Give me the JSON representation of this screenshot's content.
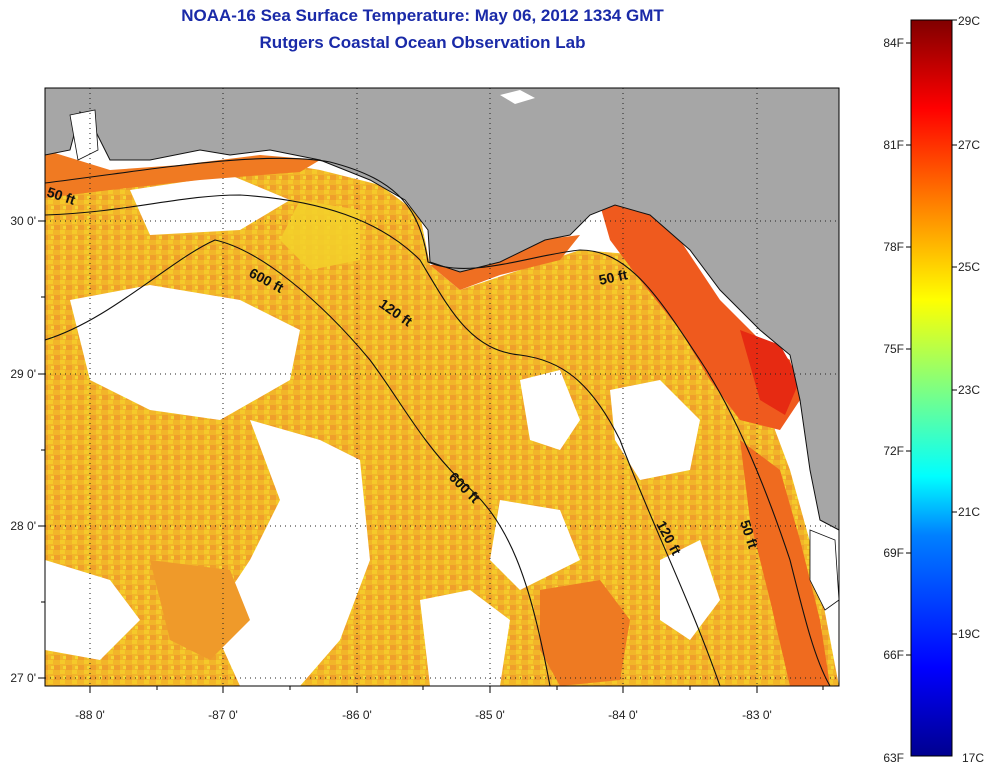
{
  "title": {
    "line1": "NOAA-16 Sea Surface Temperature:  May 06, 2012 1334 GMT",
    "line2": "Rutgers Coastal Ocean Observation Lab"
  },
  "map": {
    "x_ticks": [
      "-88 0'",
      "-87 0'",
      "-86 0'",
      "-85 0'",
      "-84 0'",
      "-83 0'"
    ],
    "y_ticks": [
      "30 0'",
      "29 0'",
      "28 0'",
      "27 0'"
    ],
    "contours": [
      {
        "depth": "50 ft"
      },
      {
        "depth": "120 ft"
      },
      {
        "depth": "600 ft"
      }
    ],
    "contour_labels": [
      "50 ft",
      "600 ft",
      "120 ft",
      "50 ft",
      "600 ft",
      "120 ft",
      "50 ft"
    ],
    "colors": {
      "land": "#a6a6a6",
      "no_data": "#ffffff",
      "warm_sst": "#f08a20",
      "mid_sst": "#f2d21e"
    }
  },
  "colorbar": {
    "fahrenheit": [
      "84F",
      "81F",
      "78F",
      "75F",
      "72F",
      "69F",
      "66F",
      "63F"
    ],
    "celsius": [
      "29C",
      "27C",
      "25C",
      "23C",
      "21C",
      "19C",
      "17C"
    ],
    "range_c": [
      17,
      29
    ],
    "colormap": "jet"
  }
}
